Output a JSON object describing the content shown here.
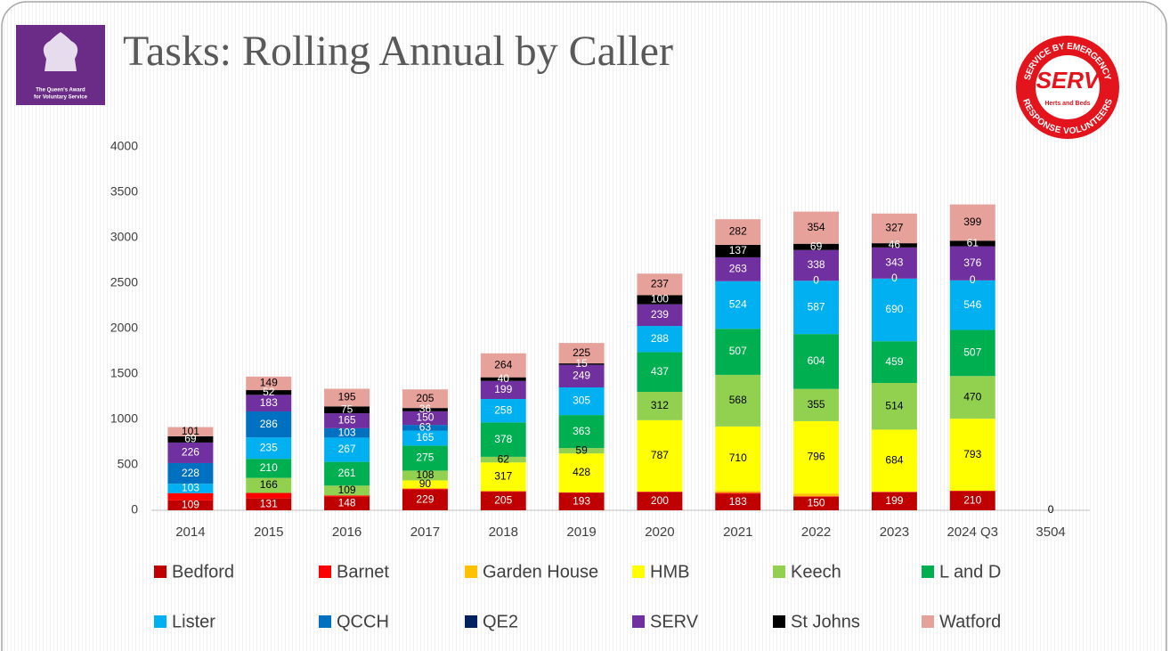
{
  "logos": {
    "left": [
      "The Queen's Award",
      "for Voluntary Service"
    ],
    "right": {
      "top": "SERVICE BY EMERGENCY",
      "bottom": "RESPONSE VOLUNTEERS",
      "middle": "Herts and Beds",
      "center": "SERV"
    }
  },
  "chart_data": {
    "type": "stacked_bar",
    "title": "Tasks: Rolling Annual by Caller",
    "categories": [
      "2014",
      "2015",
      "2016",
      "2017",
      "2018",
      "2019",
      "2020",
      "2021",
      "2022",
      "2023",
      "2024 Q3",
      "3504"
    ],
    "ylim": [
      0,
      4000
    ],
    "yticks": [
      0,
      500,
      1000,
      1500,
      2000,
      2500,
      3000,
      3500,
      4000
    ],
    "grid": false,
    "series": [
      {
        "name": "Bedford",
        "color": "#c00000",
        "label_color": "#ffffff",
        "values": [
          109,
          131,
          148,
          229,
          205,
          193,
          200,
          183,
          150,
          199,
          210,
          0
        ],
        "value_labels": [
          "109",
          "131",
          "148",
          "229",
          "205",
          "193",
          "200",
          "183",
          "150",
          "199",
          "210",
          "0"
        ]
      },
      {
        "name": "Barnet",
        "color": "#ff0000",
        "label_color": "#ffffff",
        "values": [
          80,
          60,
          15,
          10,
          5,
          5,
          5,
          10,
          5,
          5,
          5,
          0
        ],
        "value_labels": [
          null,
          null,
          null,
          null,
          null,
          null,
          null,
          null,
          null,
          null,
          null,
          null
        ]
      },
      {
        "name": "Garden House",
        "color": "#ffc000",
        "label_color": "#000000",
        "values": [
          0,
          0,
          0,
          0,
          0,
          0,
          0,
          20,
          30,
          0,
          0,
          0
        ],
        "value_labels": [
          null,
          null,
          null,
          null,
          null,
          null,
          null,
          null,
          null,
          null,
          null,
          null
        ]
      },
      {
        "name": "HMB",
        "color": "#ffff00",
        "label_color": "#000000",
        "values": [
          0,
          0,
          0,
          90,
          317,
          428,
          787,
          710,
          796,
          684,
          793,
          0
        ],
        "value_labels": [
          null,
          null,
          null,
          "90",
          "317",
          "428",
          "787",
          "710",
          "796",
          "684",
          "793",
          null
        ]
      },
      {
        "name": "Keech",
        "color": "#92d050",
        "label_color": "#000000",
        "values": [
          0,
          166,
          109,
          108,
          62,
          59,
          312,
          568,
          355,
          514,
          470,
          0
        ],
        "value_labels": [
          null,
          "166",
          "109",
          "108",
          "62",
          "59",
          "312",
          "568",
          "355",
          "514",
          "470",
          null
        ]
      },
      {
        "name": "L and D",
        "color": "#00b050",
        "label_color": "#ffffff",
        "values": [
          0,
          210,
          261,
          275,
          378,
          363,
          437,
          507,
          604,
          459,
          507,
          0
        ],
        "value_labels": [
          null,
          "210",
          "261",
          "275",
          "378",
          "363",
          "437",
          "507",
          "604",
          "459",
          "507",
          null
        ]
      },
      {
        "name": "Lister",
        "color": "#00b0f0",
        "label_color": "#ffffff",
        "values": [
          103,
          235,
          267,
          165,
          258,
          305,
          288,
          524,
          587,
          690,
          546,
          0
        ],
        "value_labels": [
          "103",
          "235",
          "267",
          "165",
          "258",
          "305",
          "288",
          "524",
          "587",
          "690",
          "546",
          null
        ]
      },
      {
        "name": "QCCH",
        "color": "#0070c0",
        "label_color": "#ffffff",
        "values": [
          228,
          286,
          103,
          63,
          0,
          0,
          0,
          0,
          0,
          0,
          0,
          0
        ],
        "value_labels": [
          "228",
          "286",
          "103",
          "63",
          null,
          null,
          null,
          null,
          "0",
          "0",
          "0",
          null
        ]
      },
      {
        "name": "QE2",
        "color": "#002060",
        "label_color": "#ffffff",
        "values": [
          0,
          0,
          0,
          0,
          0,
          0,
          0,
          0,
          0,
          0,
          0,
          0
        ],
        "value_labels": [
          null,
          null,
          null,
          null,
          null,
          null,
          null,
          null,
          null,
          null,
          null,
          null
        ]
      },
      {
        "name": "SERV",
        "color": "#7030a0",
        "label_color": "#ffffff",
        "values": [
          226,
          183,
          165,
          150,
          199,
          249,
          239,
          263,
          338,
          343,
          376,
          0
        ],
        "value_labels": [
          "226",
          "183",
          "165",
          "150",
          "199",
          "249",
          "239",
          "263",
          "338",
          "343",
          "376",
          null
        ]
      },
      {
        "name": "St Johns",
        "color": "#000000",
        "label_color": "#ffffff",
        "values": [
          69,
          52,
          75,
          36,
          40,
          15,
          100,
          137,
          69,
          46,
          61,
          0
        ],
        "value_labels": [
          "69",
          "52",
          "75",
          "36",
          "40",
          "15",
          "100",
          "137",
          "69",
          "46",
          "61",
          null
        ]
      },
      {
        "name": "Watford",
        "color": "#e6a19a",
        "label_color": "#000000",
        "values": [
          101,
          149,
          195,
          205,
          264,
          225,
          237,
          282,
          354,
          327,
          399,
          0
        ],
        "value_labels": [
          "101",
          "149",
          "195",
          "205",
          "264",
          "225",
          "237",
          "282",
          "354",
          "327",
          "399",
          null
        ]
      }
    ]
  }
}
